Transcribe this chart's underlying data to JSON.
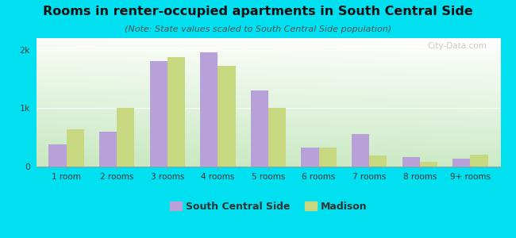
{
  "title": "Rooms in renter-occupied apartments in South Central Side",
  "subtitle": "(Note: State values scaled to South Central Side population)",
  "categories": [
    "1 room",
    "2 rooms",
    "3 rooms",
    "4 rooms",
    "5 rooms",
    "6 rooms",
    "7 rooms",
    "8 rooms",
    "9+ rooms"
  ],
  "south_central": [
    380,
    600,
    1800,
    1950,
    1300,
    330,
    560,
    160,
    130
  ],
  "madison": [
    640,
    1000,
    1870,
    1720,
    1000,
    320,
    190,
    80,
    210
  ],
  "color_sc": "#b8a0d8",
  "color_madison": "#c8d880",
  "ylim": [
    0,
    2200
  ],
  "ytick_labels": [
    "0",
    "1k",
    "2k"
  ],
  "ytick_vals": [
    0,
    1000,
    2000
  ],
  "bg_color_outer": "#00e0f0",
  "legend_sc": "South Central Side",
  "legend_madison": "Madison",
  "watermark": "City-Data.com"
}
